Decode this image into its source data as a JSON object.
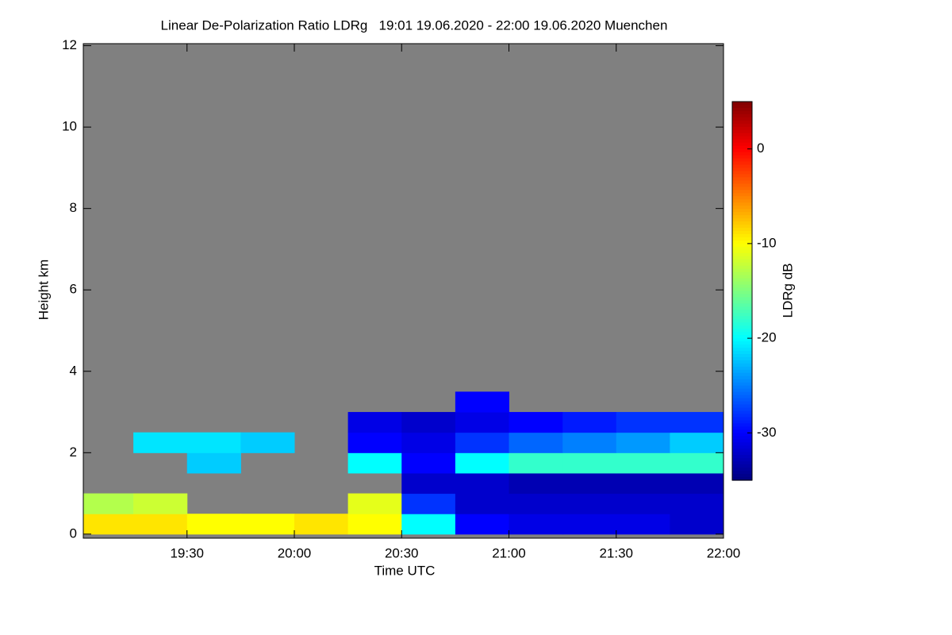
{
  "chart_data": {
    "type": "heatmap",
    "title": "Linear De-Polarization Ratio LDRg   19:01 19.06.2020 - 22:00 19.06.2020 Muenchen",
    "xlabel": "Time UTC",
    "ylabel": "Height km",
    "colorbar_label": "LDRg dB",
    "colormap": "jet",
    "background_color": "#808080",
    "xlim": [
      19.0167,
      22.0
    ],
    "xticks": [
      {
        "value": 19.5,
        "label": "19:30"
      },
      {
        "value": 20.0,
        "label": "20:00"
      },
      {
        "value": 20.5,
        "label": "20:30"
      },
      {
        "value": 21.0,
        "label": "21:00"
      },
      {
        "value": 21.5,
        "label": "21:30"
      },
      {
        "value": 22.0,
        "label": "22:00"
      }
    ],
    "ylim": [
      -0.1,
      12.05
    ],
    "yticks": [
      0,
      2,
      4,
      6,
      8,
      10,
      12
    ],
    "zlim": [
      -35,
      5
    ],
    "zticks": [
      0,
      -10,
      -20,
      -30
    ],
    "x": [
      19.125,
      19.375,
      19.625,
      19.875,
      20.125,
      20.375,
      20.625,
      20.875,
      21.125,
      21.375,
      21.625,
      21.875
    ],
    "y": [
      0.25,
      0.75,
      1.25,
      1.75,
      2.25,
      2.75,
      3.25
    ],
    "z": [
      [
        -9,
        -9,
        -10,
        -10,
        -9,
        -10,
        -20,
        -30,
        -31,
        -31,
        -31,
        -32
      ],
      [
        -13,
        -12,
        null,
        null,
        null,
        -11,
        -28,
        -32,
        -32,
        -32,
        -32,
        -32
      ],
      [
        null,
        null,
        null,
        null,
        null,
        null,
        -32,
        -32,
        -33,
        -33,
        -33,
        -33
      ],
      [
        null,
        null,
        -22,
        null,
        null,
        -20,
        -30,
        -20,
        -18,
        -18,
        -18,
        -18
      ],
      [
        null,
        -21,
        -21,
        -22,
        null,
        -30,
        -31,
        -28,
        -26,
        -25,
        -24,
        -22
      ],
      [
        null,
        null,
        null,
        null,
        null,
        -31,
        -32,
        -31,
        -30,
        -29,
        -28,
        -28
      ],
      [
        null,
        null,
        null,
        null,
        null,
        null,
        null,
        -30,
        null,
        null,
        null,
        null
      ]
    ]
  }
}
